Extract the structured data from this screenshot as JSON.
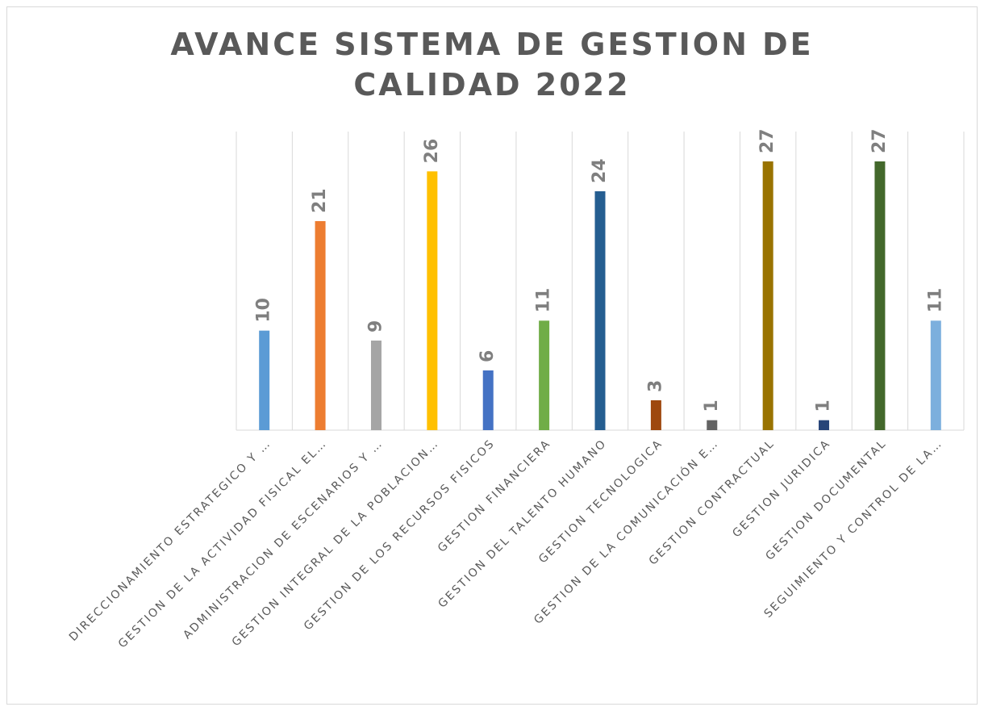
{
  "chart_data": {
    "type": "bar",
    "title": "AVANCE SISTEMA DE GESTION DE CALIDAD 2022",
    "categories": [
      "DIRECCIONAMIENTO ESTRATEGICO Y …",
      "GESTION DE LA ACTIVIDAD FISICAL EL…",
      "ADMINISTRACION DE ESCENARIOS Y …",
      "GESTION INTEGRAL DE LA POBLACION…",
      "GESTION DE LOS RECURSOS FISICOS",
      "GESTION FINANCIERA",
      "GESTION DEL TALENTO HUMANO",
      "GESTION TECNOLOGICA",
      "GESTION DE LA COMUNICACIÓN E…",
      "GESTION CONTRACTUAL",
      "GESTION JURIDICA",
      "GESTION DOCUMENTAL",
      "SEGUIMIENTO Y CONTROL DE LA…"
    ],
    "values": [
      10,
      21,
      9,
      26,
      6,
      11,
      24,
      3,
      1,
      27,
      1,
      27,
      11
    ],
    "colors": [
      "#5b9bd5",
      "#ed7d31",
      "#a5a5a5",
      "#ffc000",
      "#4472c4",
      "#70ad47",
      "#255e91",
      "#9e480e",
      "#636363",
      "#997300",
      "#264478",
      "#43682b",
      "#7cafdd"
    ],
    "ylim": [
      0,
      30
    ]
  }
}
